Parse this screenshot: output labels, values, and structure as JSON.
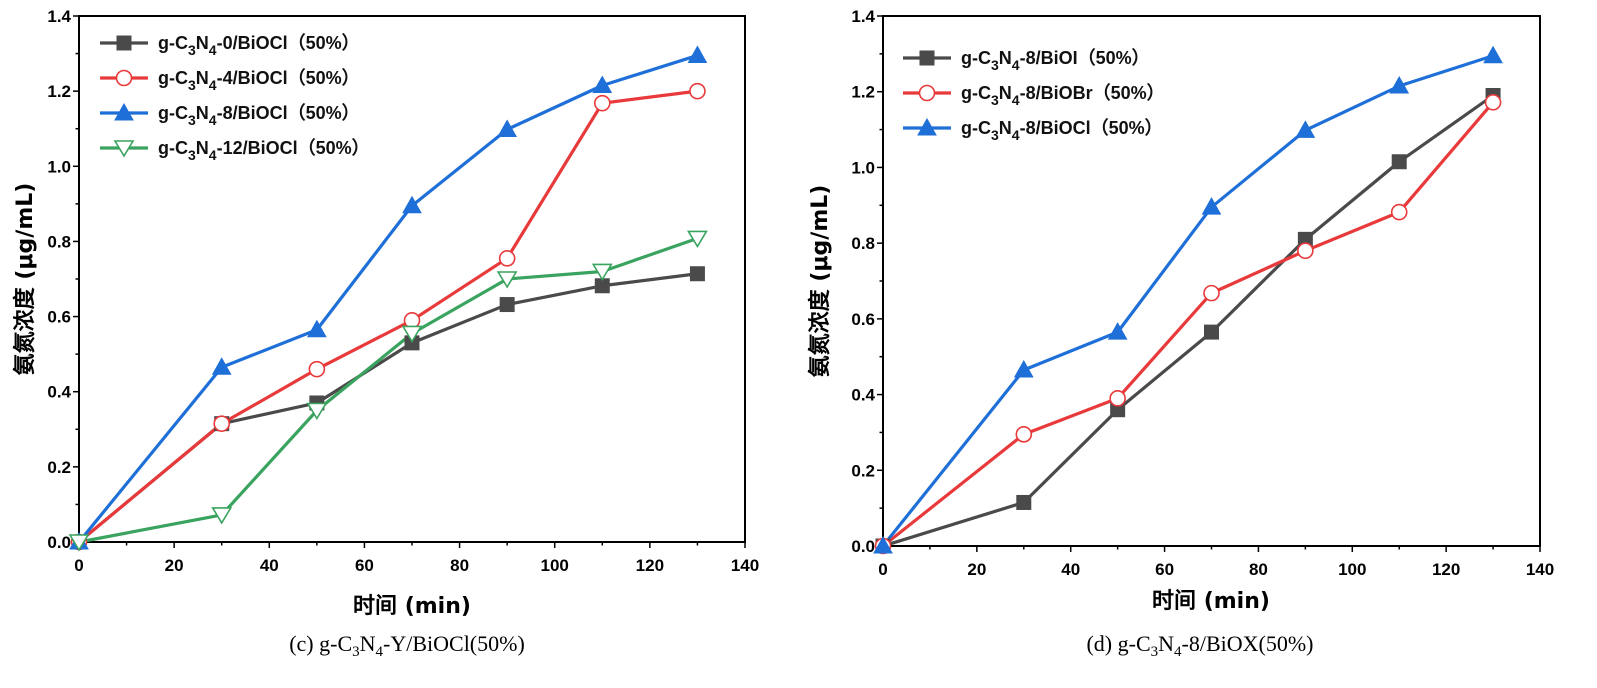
{
  "chart_data": [
    {
      "type": "line",
      "caption": {
        "prefix": "(c) g-C",
        "sub1": "3",
        "mid": "N",
        "sub2": "4",
        "suffix": "-Y/BiOCl(50%)"
      },
      "xlabel": "时间 (min)",
      "ylabel": "氨氮浓度 (μg/mL)",
      "xlim": [
        0,
        140
      ],
      "ylim": [
        0,
        1.4
      ],
      "xticks": [
        0,
        20,
        40,
        60,
        80,
        100,
        120,
        140
      ],
      "xtick_labels": [
        "0",
        "20",
        "40",
        "60",
        "80",
        "100",
        "120",
        "140"
      ],
      "yticks": [
        0,
        0.2,
        0.4,
        0.6,
        0.8,
        1.0,
        1.2,
        1.4
      ],
      "ytick_labels": [
        "0.0",
        "0.2",
        "0.4",
        "0.6",
        "0.8",
        "1.0",
        "1.2",
        "1.4"
      ],
      "legend_position": "top-left",
      "series": [
        {
          "name": "g-C3N4-0/BiOCl（50%）",
          "label": {
            "a": "g-C",
            "s1": "3",
            "b": "N",
            "s2": "4",
            "c": "-0/BiOCl（50%）"
          },
          "color": "#4a4a4a",
          "marker": "square",
          "x": [
            0,
            30,
            50,
            70,
            90,
            110,
            130
          ],
          "y": [
            0,
            0.315,
            0.37,
            0.53,
            0.632,
            0.682,
            0.714
          ]
        },
        {
          "name": "g-C3N4-4/BiOCl（50%）",
          "label": {
            "a": "g-C",
            "s1": "3",
            "b": "N",
            "s2": "4",
            "c": "-4/BiOCl（50%）"
          },
          "color": "#e8393b",
          "marker": "circle-open",
          "x": [
            0,
            30,
            50,
            70,
            90,
            110,
            130
          ],
          "y": [
            0,
            0.315,
            0.46,
            0.59,
            0.755,
            1.168,
            1.2
          ]
        },
        {
          "name": "g-C3N4-8/BiOCl（50%）",
          "label": {
            "a": "g-C",
            "s1": "3",
            "b": "N",
            "s2": "4",
            "c": "-8/BiOCl（50%）"
          },
          "color": "#1f6fd8",
          "marker": "triangle-up",
          "x": [
            0,
            30,
            50,
            70,
            90,
            110,
            130
          ],
          "y": [
            0,
            0.465,
            0.565,
            0.895,
            1.098,
            1.215,
            1.295
          ]
        },
        {
          "name": "g-C3N4-12/BiOCl（50%）",
          "label": {
            "a": "g-C",
            "s1": "3",
            "b": "N",
            "s2": "4",
            "c": "-12/BiOCl（50%）"
          },
          "color": "#3aa35f",
          "marker": "triangle-down-open",
          "x": [
            0,
            30,
            50,
            70,
            90,
            110,
            130
          ],
          "y": [
            0,
            0.072,
            0.35,
            0.555,
            0.7,
            0.72,
            0.808
          ]
        }
      ]
    },
    {
      "type": "line",
      "caption": {
        "prefix": "(d) g-C",
        "sub1": "3",
        "mid": "N",
        "sub2": "4",
        "suffix": "-8/BiOX(50%)"
      },
      "xlabel": "时间 (min)",
      "ylabel": "氨氮浓度 (μg/mL)",
      "xlim": [
        0,
        140
      ],
      "ylim": [
        0,
        1.4
      ],
      "xticks": [
        0,
        20,
        40,
        60,
        80,
        100,
        120,
        140
      ],
      "xtick_labels": [
        "0",
        "20",
        "40",
        "60",
        "80",
        "100",
        "120",
        "140"
      ],
      "yticks": [
        0,
        0.2,
        0.4,
        0.6,
        0.8,
        1.0,
        1.2,
        1.4
      ],
      "ytick_labels": [
        "0.0",
        "0.2",
        "0.4",
        "0.6",
        "0.8",
        "1.0",
        "1.2",
        "1.4"
      ],
      "legend_position": "top-left",
      "series": [
        {
          "name": "g-C3N4-8/BiOI（50%）",
          "label": {
            "a": "g-C",
            "s1": "3",
            "b": "N",
            "s2": "4",
            "c": "-8/BiOI（50%）"
          },
          "color": "#4a4a4a",
          "marker": "square",
          "x": [
            0,
            30,
            50,
            70,
            90,
            110,
            130
          ],
          "y": [
            0,
            0.115,
            0.36,
            0.565,
            0.81,
            1.015,
            1.19
          ]
        },
        {
          "name": "g-C3N4-8/BiOBr（50%）",
          "label": {
            "a": "g-C",
            "s1": "3",
            "b": "N",
            "s2": "4",
            "c": "-8/BiOBr（50%）"
          },
          "color": "#e8393b",
          "marker": "circle-open",
          "x": [
            0,
            30,
            50,
            70,
            90,
            110,
            130
          ],
          "y": [
            0,
            0.295,
            0.39,
            0.668,
            0.78,
            0.882,
            1.172
          ]
        },
        {
          "name": "g-C3N4-8/BiOCl（50%）",
          "label": {
            "a": "g-C",
            "s1": "3",
            "b": "N",
            "s2": "4",
            "c": "-8/BiOCl（50%）"
          },
          "color": "#1f6fd8",
          "marker": "triangle-up",
          "x": [
            0,
            30,
            50,
            70,
            90,
            110,
            130
          ],
          "y": [
            0,
            0.465,
            0.565,
            0.895,
            1.098,
            1.215,
            1.295
          ]
        }
      ]
    }
  ]
}
